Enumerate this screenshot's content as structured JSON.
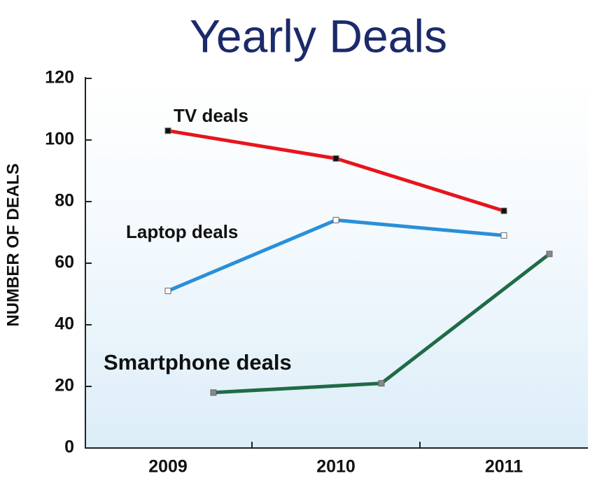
{
  "chart_data": {
    "type": "line",
    "title": "Yearly Deals",
    "y_label": "NUMBER OF DEALS",
    "categories": [
      "2009",
      "2010",
      "2011"
    ],
    "series": [
      {
        "name": "TV deals",
        "color": "#e8141c",
        "marker_color": "#111111",
        "values": [
          103,
          94,
          77
        ]
      },
      {
        "name": "Laptop deals",
        "color": "#2a8fd8",
        "marker_color": "#ffffff",
        "values": [
          51,
          74,
          69
        ]
      },
      {
        "name": "Smartphone deals",
        "color": "#1f6b45",
        "marker_color": "#888888",
        "values": [
          18,
          21,
          63
        ]
      }
    ],
    "ylim": [
      0,
      120
    ],
    "yticks": [
      0,
      20,
      40,
      60,
      80,
      100,
      120
    ]
  }
}
